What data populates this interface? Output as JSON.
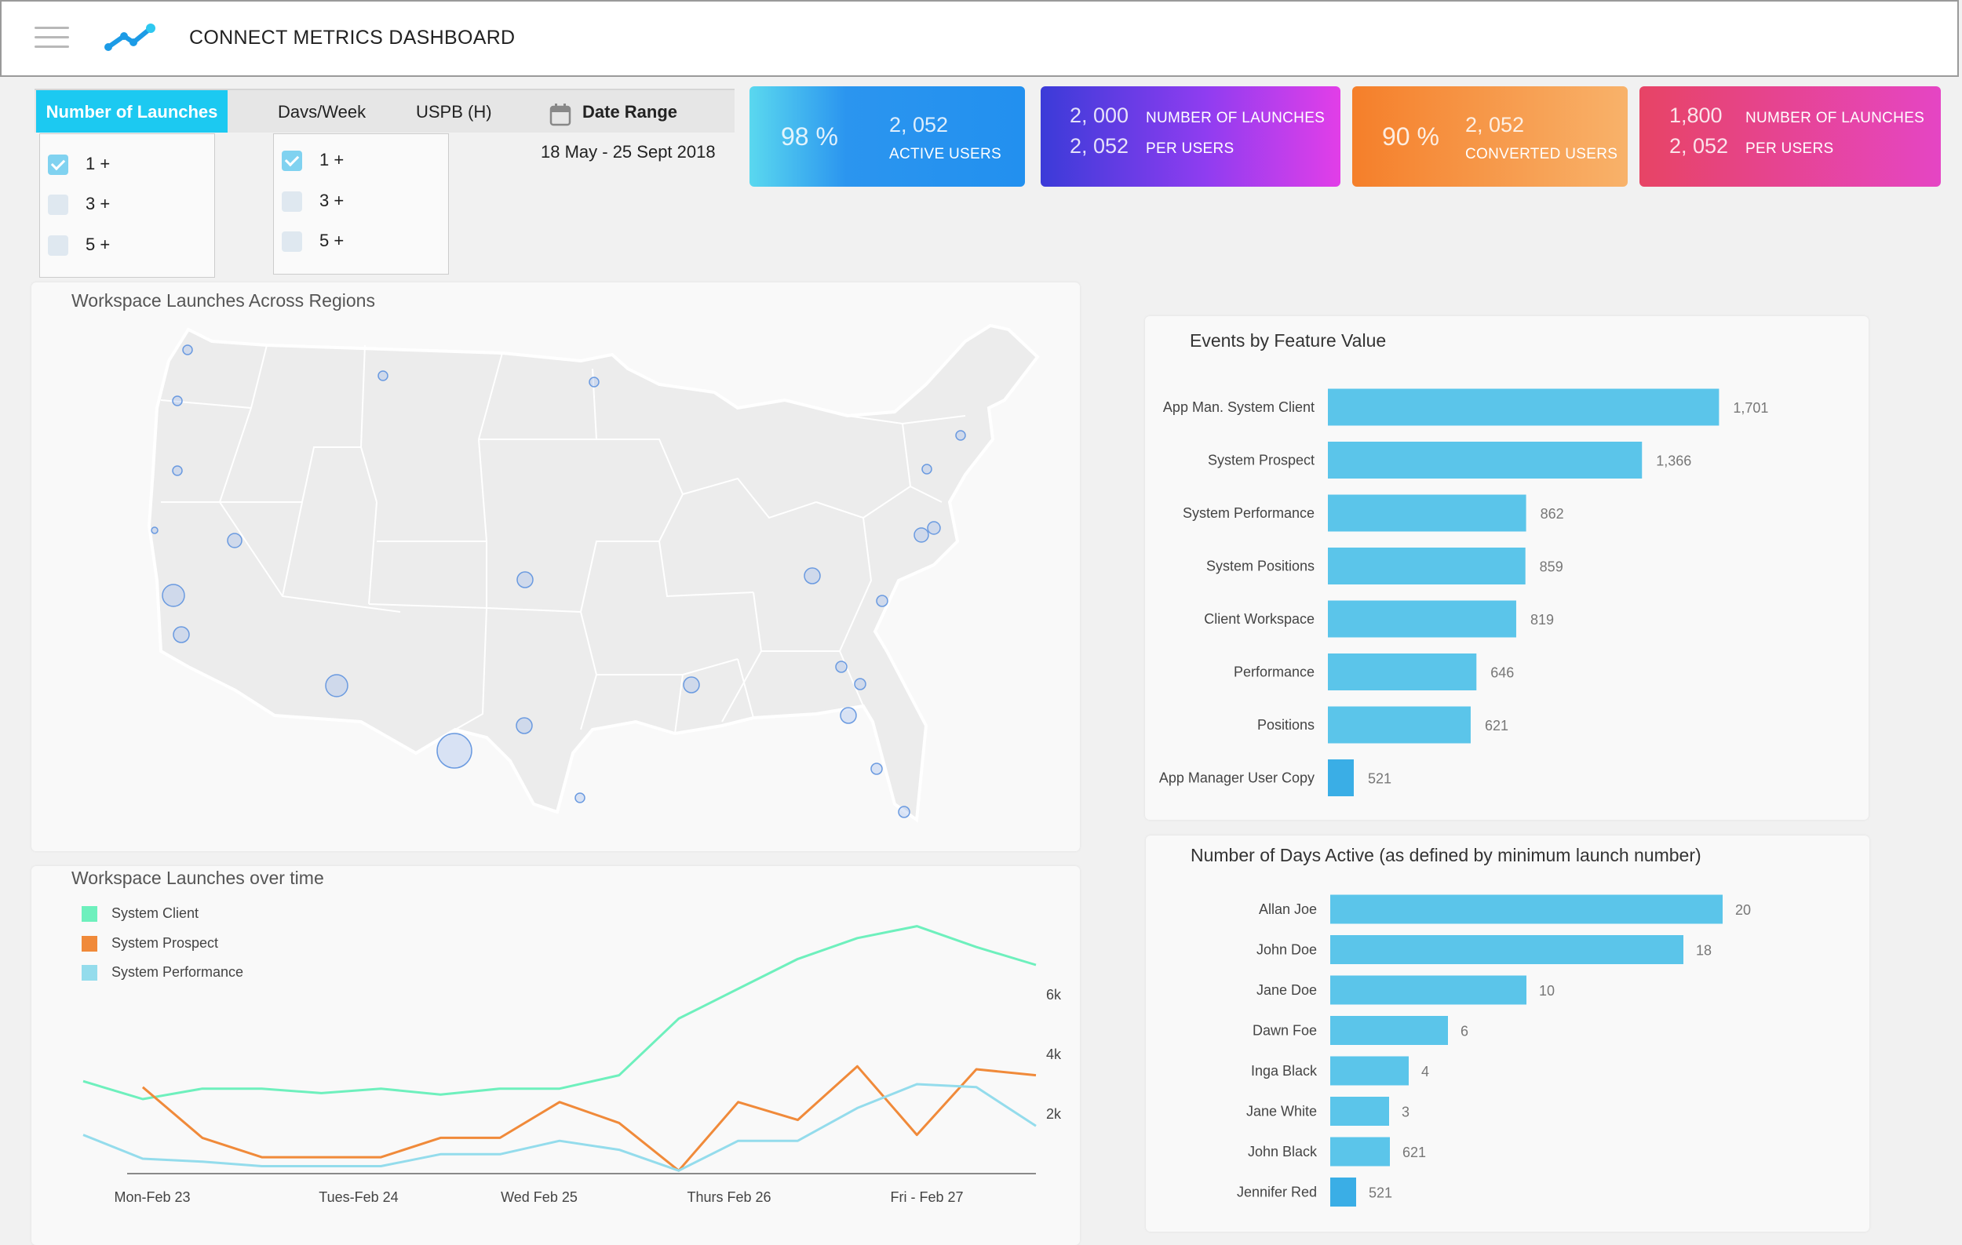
{
  "header": {
    "title": "CONNECT METRICS DASHBOARD",
    "menu_icon": "hamburger-icon",
    "logo_icon": "trend-line-logo-icon"
  },
  "filters": {
    "tabs": [
      "Number of Launches",
      "Davs/Week",
      "USPB (H)",
      "Date Range"
    ],
    "date_range": "18 May - 25 Sept 2018",
    "launches_options": [
      {
        "label": "1 +",
        "checked": true
      },
      {
        "label": "3 +",
        "checked": false
      },
      {
        "label": "5 +",
        "checked": false
      }
    ],
    "days_options": [
      {
        "label": "1 +",
        "checked": true
      },
      {
        "label": "3 +",
        "checked": false
      },
      {
        "label": "5 +",
        "checked": false
      }
    ]
  },
  "kpis": {
    "active": {
      "percent": "98 %",
      "count": "2, 052",
      "label": "ACTIVE USERS"
    },
    "launches_per_user": {
      "value1": "2, 000",
      "value2": "2, 052",
      "label1": "NUMBER OF LAUNCHES",
      "label2": "PER USERS"
    },
    "converted": {
      "percent": "90 %",
      "count": "2, 052",
      "label": "CONVERTED USERS"
    },
    "launches_per_user_2": {
      "value1": "1,800",
      "value2": "2, 052",
      "label1": "NUMBER OF LAUNCHES",
      "label2": "PER USERS"
    }
  },
  "map": {
    "title": "Workspace Launches Across  Regions"
  },
  "colors": {
    "accent": "#1cc9f1",
    "bar": "#5bc5ea",
    "bar_last": "#3aaee6",
    "system_client": "#6ef0bd",
    "system_prospect": "#f08a3a",
    "system_performance": "#94dcec"
  },
  "chart_data": [
    {
      "type": "bar",
      "orientation": "horizontal",
      "title": "Events by Feature Value",
      "categories": [
        "App Man. System Client",
        "System Prospect",
        "System Performance",
        "System Positions",
        "Client Workspace",
        "Performance",
        "Positions",
        "App Manager User Copy"
      ],
      "values": [
        1701,
        1366,
        862,
        859,
        819,
        646,
        621,
        521
      ],
      "value_labels": [
        "1,701",
        "1,366",
        "862",
        "859",
        "819",
        "646",
        "621",
        "521"
      ],
      "xlim": [
        0,
        2000
      ]
    },
    {
      "type": "bar",
      "orientation": "horizontal",
      "title": "Number of Days Active (as defined by minimum launch number)",
      "categories": [
        "Allan Joe",
        "John Doe",
        "Jane Doe",
        "Dawn  Foe",
        "Inga Black",
        "Jane White",
        "John Black",
        "Jennifer Red"
      ],
      "values": [
        20,
        18,
        10,
        6,
        4,
        3,
        621,
        521
      ],
      "value_labels": [
        "20",
        "18",
        "10",
        "6",
        "4",
        "3",
        "621",
        "521"
      ]
    },
    {
      "type": "line",
      "title": "Workspace Launches over time",
      "x_ticks": [
        "Mon-Feb 23",
        "Tues-Feb 24",
        "Wed Feb 25",
        "Thurs  Feb 26",
        "Fri - Feb 27"
      ],
      "y_ticks": [
        "2k",
        "4k",
        "6k"
      ],
      "ylim": [
        0,
        9000
      ],
      "series": [
        {
          "name": "System Client",
          "values": [
            3100,
            2500,
            2850,
            2850,
            2700,
            2850,
            2650,
            2850,
            2850,
            3300,
            5200,
            6200,
            7200,
            7900,
            8300,
            7600,
            7000
          ]
        },
        {
          "name": "System Prospect",
          "values": [
            null,
            2900,
            1200,
            550,
            550,
            550,
            1200,
            1200,
            2400,
            1700,
            100,
            2400,
            1800,
            3600,
            1300,
            3500,
            3300
          ]
        },
        {
          "name": "System Performance",
          "values": [
            1300,
            500,
            400,
            250,
            250,
            250,
            650,
            650,
            1100,
            800,
            100,
            1100,
            1100,
            2200,
            3000,
            2900,
            1600
          ]
        }
      ]
    }
  ]
}
